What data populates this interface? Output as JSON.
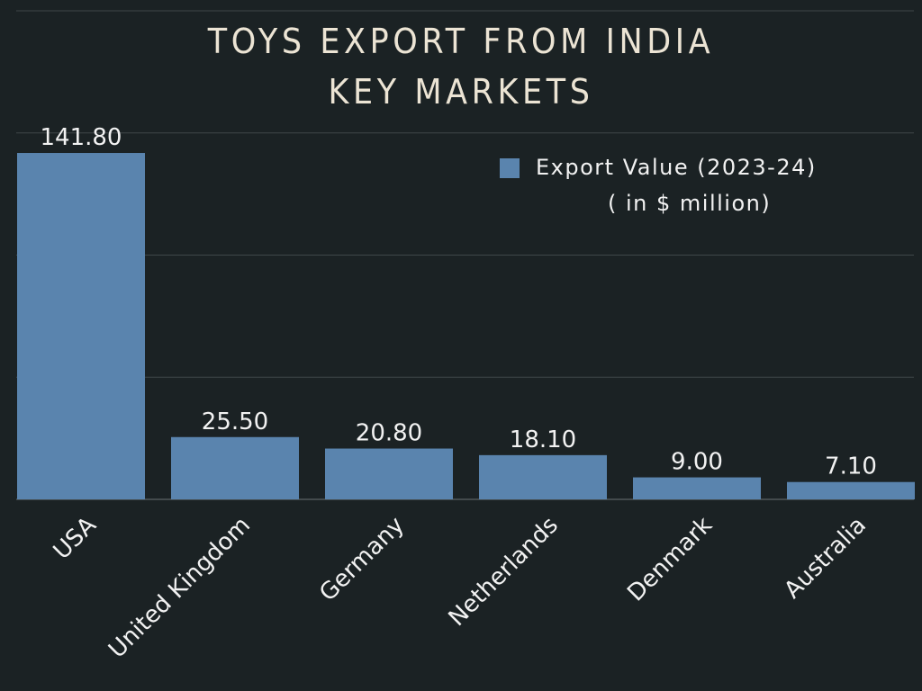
{
  "chart_data": {
    "type": "bar",
    "title": [
      "TOYS EXPORT FROM INDIA",
      "KEY MARKETS"
    ],
    "categories": [
      "USA",
      "United Kingdom",
      "Germany",
      "Netherlands",
      "Denmark",
      "Australia"
    ],
    "series": [
      {
        "name": "Export Value (2023-24) ( in $ million)",
        "legend_lines": [
          "Export Value (2023-24)",
          "( in $ million)"
        ],
        "values": [
          141.8,
          25.5,
          20.8,
          18.1,
          9.0,
          7.1
        ],
        "labels": [
          "141.80",
          "25.50",
          "20.80",
          "18.10",
          "9.00",
          "7.10"
        ]
      }
    ],
    "xlabel": "",
    "ylabel": "",
    "ylim": [
      0,
      200
    ],
    "grid": true,
    "gridlines": [
      50,
      100,
      150,
      200
    ],
    "legend_position": "top-right",
    "colors": {
      "background": "#1b2224",
      "bar": "#5a84ae",
      "grid": "#3f4749",
      "text": "#f2f2f2",
      "title": "#ece4d4"
    }
  }
}
